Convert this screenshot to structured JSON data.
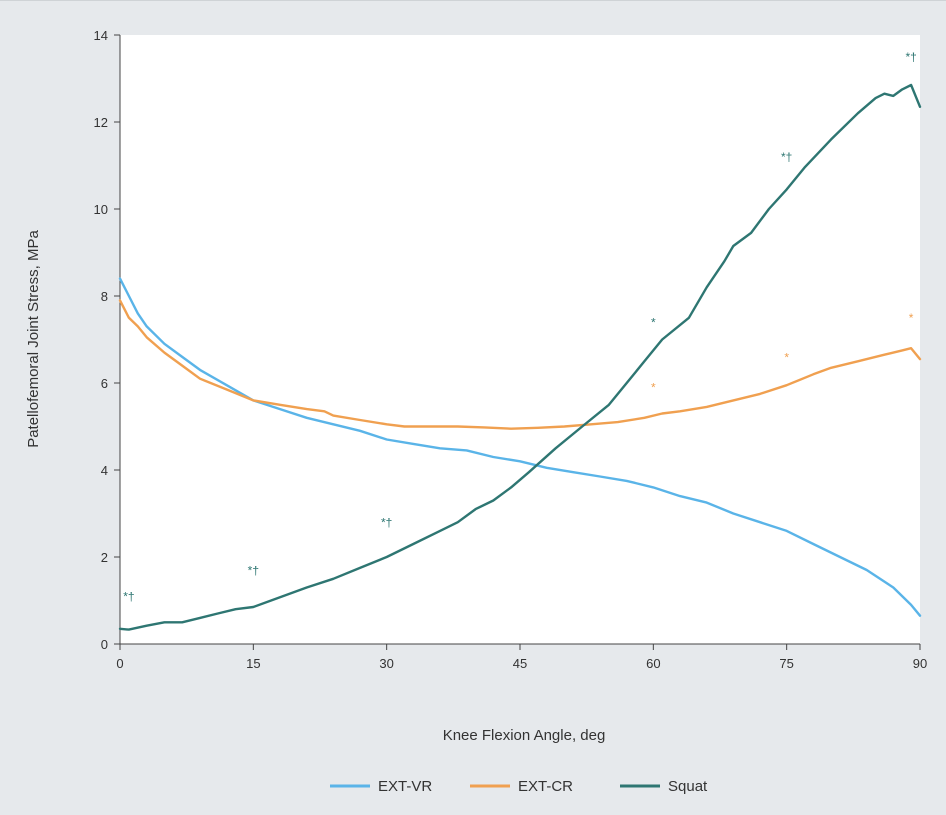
{
  "chart_data": {
    "type": "line",
    "xlabel": "Knee Flexion Angle, deg",
    "ylabel": "Patellofemoral Joint Stress, MPa",
    "xlim": [
      0,
      90
    ],
    "ylim": [
      0,
      14
    ],
    "xticks": [
      0,
      15,
      30,
      45,
      60,
      75,
      90
    ],
    "yticks": [
      0,
      2,
      4,
      6,
      8,
      10,
      12,
      14
    ],
    "grid": false,
    "legend_position": "bottom-center",
    "series": [
      {
        "name": "EXT-VR",
        "color": "#5ab4e8",
        "x": [
          0,
          1,
          2,
          3,
          5,
          7,
          9,
          12,
          15,
          18,
          21,
          24,
          27,
          30,
          33,
          36,
          39,
          42,
          45,
          48,
          51,
          54,
          57,
          60,
          63,
          66,
          69,
          72,
          75,
          78,
          81,
          84,
          87,
          89,
          90
        ],
        "y": [
          8.4,
          8.0,
          7.6,
          7.3,
          6.9,
          6.6,
          6.3,
          5.95,
          5.6,
          5.4,
          5.2,
          5.05,
          4.9,
          4.7,
          4.6,
          4.5,
          4.45,
          4.3,
          4.2,
          4.05,
          3.95,
          3.85,
          3.75,
          3.6,
          3.4,
          3.25,
          3.0,
          2.8,
          2.6,
          2.3,
          2.0,
          1.7,
          1.3,
          0.9,
          0.65
        ]
      },
      {
        "name": "EXT-CR",
        "color": "#f0a050",
        "x": [
          0,
          1,
          2,
          3,
          5,
          7,
          9,
          12,
          15,
          18,
          21,
          23,
          24,
          27,
          30,
          32,
          35,
          38,
          41,
          44,
          47,
          50,
          53,
          56,
          59,
          61,
          63,
          66,
          69,
          72,
          75,
          78,
          80,
          83,
          86,
          88,
          89,
          90
        ],
        "y": [
          7.9,
          7.5,
          7.3,
          7.05,
          6.7,
          6.4,
          6.1,
          5.85,
          5.6,
          5.5,
          5.4,
          5.35,
          5.25,
          5.15,
          5.05,
          5.0,
          5.0,
          5.0,
          4.98,
          4.95,
          4.97,
          5.0,
          5.05,
          5.1,
          5.2,
          5.3,
          5.35,
          5.45,
          5.6,
          5.75,
          5.95,
          6.2,
          6.35,
          6.5,
          6.65,
          6.75,
          6.8,
          6.55
        ]
      },
      {
        "name": "Squat",
        "color": "#2e7672",
        "x": [
          0,
          1,
          3,
          5,
          7,
          9,
          11,
          13,
          15,
          17,
          19,
          21,
          24,
          27,
          30,
          33,
          36,
          38,
          40,
          42,
          44,
          46,
          49,
          52,
          55,
          57,
          59,
          61,
          64,
          66,
          68,
          69,
          71,
          73,
          75,
          77,
          80,
          83,
          85,
          86,
          87,
          88,
          89,
          90
        ],
        "y": [
          0.35,
          0.33,
          0.42,
          0.5,
          0.5,
          0.6,
          0.7,
          0.8,
          0.85,
          1.0,
          1.15,
          1.3,
          1.5,
          1.75,
          2.0,
          2.3,
          2.6,
          2.8,
          3.1,
          3.3,
          3.6,
          3.95,
          4.5,
          5.0,
          5.5,
          6.0,
          6.5,
          7.0,
          7.5,
          8.2,
          8.8,
          9.15,
          9.45,
          10.0,
          10.45,
          10.95,
          11.6,
          12.2,
          12.55,
          12.65,
          12.6,
          12.75,
          12.85,
          12.35
        ]
      }
    ],
    "annotations": [
      {
        "text": "*†",
        "x": 1,
        "y": 1.0,
        "color": "#2e7672"
      },
      {
        "text": "*†",
        "x": 15,
        "y": 1.6,
        "color": "#2e7672"
      },
      {
        "text": "*†",
        "x": 30,
        "y": 2.7,
        "color": "#2e7672"
      },
      {
        "text": "*",
        "x": 60,
        "y": 7.3,
        "color": "#2e7672"
      },
      {
        "text": "*",
        "x": 60,
        "y": 5.8,
        "color": "#f0a050"
      },
      {
        "text": "*†",
        "x": 75,
        "y": 11.1,
        "color": "#2e7672"
      },
      {
        "text": "*",
        "x": 75,
        "y": 6.5,
        "color": "#f0a050"
      },
      {
        "text": "*†",
        "x": 89,
        "y": 13.4,
        "color": "#2e7672"
      },
      {
        "text": "*",
        "x": 89,
        "y": 7.4,
        "color": "#f0a050"
      }
    ]
  }
}
